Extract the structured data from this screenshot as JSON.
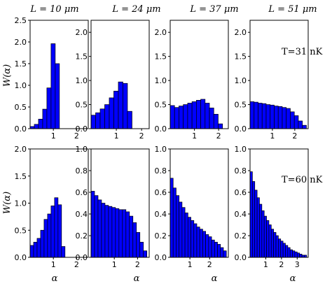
{
  "figure": {
    "column_titles": [
      "L = 10 μm",
      "L = 24 μm",
      "L = 37 μm",
      "L = 51 μm"
    ],
    "row_ylabel": "W(α)",
    "xlabel": "α",
    "temperature_labels": [
      "T=31 nK",
      "T=60 nK"
    ]
  },
  "chart_data": [
    {
      "type": "bar",
      "row": 0,
      "col": 0,
      "title": "L = 10 μm",
      "ylabel": "W(α)",
      "xlabel": "",
      "xlim": [
        0,
        2.5
      ],
      "ylim": [
        0,
        2.5
      ],
      "xticks": [
        1,
        2
      ],
      "yticks": [
        0.0,
        0.5,
        1.0,
        1.5,
        2.0,
        2.5
      ],
      "bin_edges": [
        0.0,
        0.18,
        0.36,
        0.54,
        0.72,
        0.9,
        1.08,
        1.26
      ],
      "values": [
        0.05,
        0.1,
        0.22,
        0.45,
        0.94,
        1.96,
        1.5
      ]
    },
    {
      "type": "bar",
      "row": 0,
      "col": 1,
      "title": "L = 24 μm",
      "ylabel": "",
      "xlabel": "",
      "xlim": [
        0,
        2.3
      ],
      "ylim": [
        0,
        2.25
      ],
      "xticks": [
        1,
        2
      ],
      "yticks": [
        0.0,
        0.5,
        1.0,
        1.5,
        2.0
      ],
      "bin_edges": [
        0.0,
        0.18,
        0.36,
        0.54,
        0.72,
        0.9,
        1.08,
        1.26,
        1.44,
        1.62
      ],
      "values": [
        0.28,
        0.33,
        0.41,
        0.5,
        0.64,
        0.78,
        0.97,
        0.94,
        0.36
      ]
    },
    {
      "type": "bar",
      "row": 0,
      "col": 2,
      "title": "L = 37 μm",
      "ylabel": "",
      "xlabel": "",
      "xlim": [
        0,
        2.4
      ],
      "ylim": [
        0,
        2.25
      ],
      "xticks": [
        1,
        2
      ],
      "yticks": [
        0.0,
        0.5,
        1.0,
        1.5,
        2.0
      ],
      "bin_edges": [
        0.0,
        0.18,
        0.36,
        0.54,
        0.72,
        0.9,
        1.08,
        1.26,
        1.44,
        1.62,
        1.8,
        1.98,
        2.16
      ],
      "values": [
        0.48,
        0.44,
        0.47,
        0.5,
        0.53,
        0.56,
        0.59,
        0.61,
        0.53,
        0.43,
        0.3,
        0.1
      ]
    },
    {
      "type": "bar",
      "row": 0,
      "col": 3,
      "title": "L = 51 μm",
      "ylabel": "",
      "xlabel": "",
      "annotation": "T=31 nK",
      "xlim": [
        0,
        2.6
      ],
      "ylim": [
        0,
        2.25
      ],
      "xticks": [
        1,
        2
      ],
      "yticks": [
        0.0,
        0.5,
        1.0,
        1.5,
        2.0
      ],
      "bin_edges": [
        0.0,
        0.18,
        0.36,
        0.54,
        0.72,
        0.9,
        1.08,
        1.26,
        1.44,
        1.62,
        1.8,
        1.98,
        2.16,
        2.34,
        2.52
      ],
      "values": [
        0.56,
        0.55,
        0.53,
        0.52,
        0.5,
        0.49,
        0.47,
        0.46,
        0.44,
        0.42,
        0.35,
        0.27,
        0.16,
        0.07
      ]
    },
    {
      "type": "bar",
      "row": 1,
      "col": 0,
      "title": "",
      "ylabel": "W(α)",
      "xlabel": "α",
      "xlim": [
        0,
        2.5
      ],
      "ylim": [
        0,
        2.0
      ],
      "xticks": [
        1,
        2
      ],
      "yticks": [
        0.0,
        0.5,
        1.0,
        1.5,
        2.0
      ],
      "bin_edges": [
        0.0,
        0.15,
        0.3,
        0.45,
        0.6,
        0.75,
        0.9,
        1.05,
        1.2,
        1.35,
        1.5,
        1.65
      ],
      "values": [
        0.22,
        0.28,
        0.35,
        0.5,
        0.7,
        0.8,
        0.95,
        1.1,
        0.97,
        0.2,
        0.0
      ]
    },
    {
      "type": "bar",
      "row": 1,
      "col": 1,
      "title": "",
      "ylabel": "",
      "xlabel": "α",
      "xlim": [
        0,
        2.5
      ],
      "ylim": [
        0,
        1.0
      ],
      "xticks": [
        1,
        2
      ],
      "yticks": [
        0.0,
        0.2,
        0.4,
        0.6,
        0.8,
        1.0
      ],
      "bin_edges": [
        0.0,
        0.15,
        0.3,
        0.45,
        0.6,
        0.75,
        0.9,
        1.05,
        1.2,
        1.35,
        1.5,
        1.65,
        1.8,
        1.95,
        2.1,
        2.25,
        2.4
      ],
      "values": [
        0.61,
        0.57,
        0.53,
        0.5,
        0.48,
        0.47,
        0.46,
        0.45,
        0.44,
        0.44,
        0.42,
        0.38,
        0.32,
        0.23,
        0.14,
        0.06
      ]
    },
    {
      "type": "bar",
      "row": 1,
      "col": 2,
      "title": "",
      "ylabel": "",
      "xlabel": "α",
      "xlim": [
        0,
        2.95
      ],
      "ylim": [
        0,
        1.0
      ],
      "xticks": [
        1,
        2
      ],
      "yticks": [
        0.0,
        0.2,
        0.4,
        0.6,
        0.8,
        1.0
      ],
      "bin_edges": [
        0.0,
        0.15,
        0.3,
        0.45,
        0.6,
        0.75,
        0.9,
        1.05,
        1.2,
        1.35,
        1.5,
        1.65,
        1.8,
        1.95,
        2.1,
        2.25,
        2.4,
        2.55,
        2.7,
        2.85
      ],
      "values": [
        0.73,
        0.64,
        0.57,
        0.51,
        0.46,
        0.41,
        0.37,
        0.34,
        0.31,
        0.28,
        0.26,
        0.24,
        0.21,
        0.19,
        0.16,
        0.14,
        0.12,
        0.09,
        0.06
      ]
    },
    {
      "type": "bar",
      "row": 1,
      "col": 3,
      "title": "",
      "ylabel": "",
      "xlabel": "α",
      "annotation": "T=60 nK",
      "xlim": [
        0,
        3.7
      ],
      "ylim": [
        0,
        1.0
      ],
      "xticks": [
        1,
        2,
        3
      ],
      "yticks": [
        0.0,
        0.2,
        0.4,
        0.6,
        0.8,
        1.0
      ],
      "bin_edges": [
        0.0,
        0.15,
        0.3,
        0.45,
        0.6,
        0.75,
        0.9,
        1.05,
        1.2,
        1.35,
        1.5,
        1.65,
        1.8,
        1.95,
        2.1,
        2.25,
        2.4,
        2.55,
        2.7,
        2.85,
        3.0,
        3.15,
        3.3,
        3.45,
        3.6
      ],
      "values": [
        0.79,
        0.7,
        0.62,
        0.55,
        0.49,
        0.43,
        0.38,
        0.34,
        0.3,
        0.26,
        0.23,
        0.2,
        0.17,
        0.15,
        0.13,
        0.11,
        0.09,
        0.07,
        0.06,
        0.05,
        0.04,
        0.03,
        0.02,
        0.02
      ]
    }
  ]
}
